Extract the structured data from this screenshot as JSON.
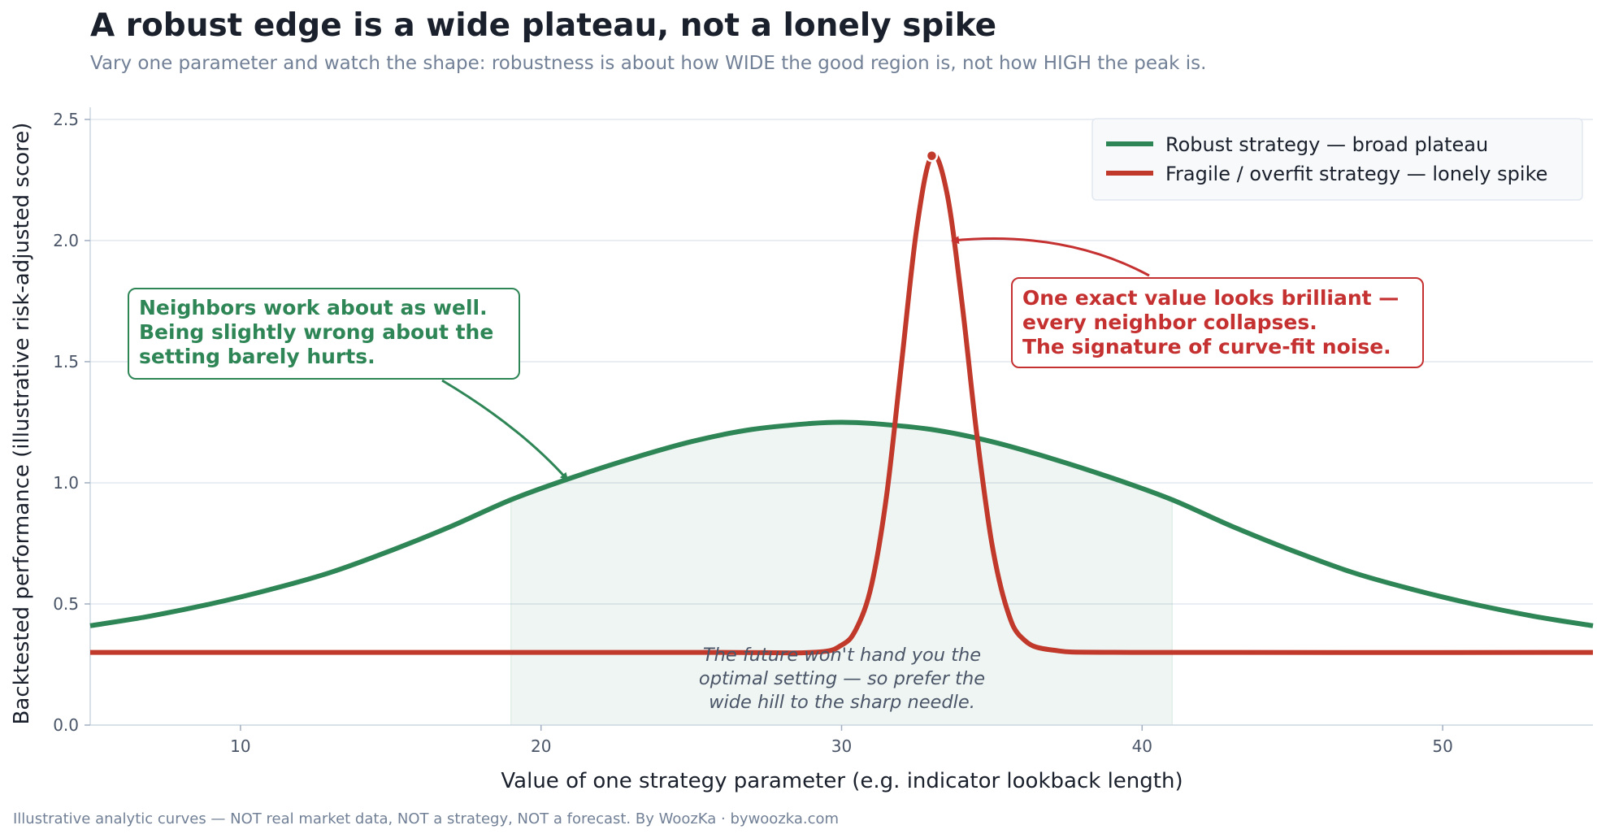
{
  "title": "A robust edge is a wide plateau, not a lonely spike",
  "subtitle": "Vary one parameter and watch the shape: robustness is about how WIDE the good region is, not how HIGH the peak is.",
  "footer": "Illustrative analytic curves — NOT real market data, NOT a strategy, NOT a forecast. By WoozKa · bywoozka.com",
  "chart_data": {
    "type": "line",
    "xlabel": "Value of one strategy parameter  (e.g. indicator lookback length)",
    "ylabel": "Backtested performance  (illustrative risk-adjusted score)",
    "xlim": [
      5,
      55
    ],
    "ylim": [
      0,
      2.55
    ],
    "x_ticks": [
      "10",
      "20",
      "30",
      "40",
      "50"
    ],
    "y_ticks": [
      "0.0",
      "0.5",
      "1.0",
      "1.5",
      "2.0",
      "2.5"
    ],
    "grid": "horizontal",
    "legend_position": "top-right",
    "shaded_region": {
      "x": [
        19,
        41
      ]
    },
    "series": [
      {
        "name": "Robust strategy — broad plateau",
        "color": "#2e8555",
        "x": [
          5,
          7,
          9,
          11,
          13,
          15,
          17,
          19,
          21,
          23,
          25,
          27,
          29,
          30,
          31,
          33,
          35,
          37,
          39,
          41,
          43,
          45,
          47,
          49,
          51,
          53,
          55
        ],
        "y": [
          0.41,
          0.45,
          0.5,
          0.56,
          0.63,
          0.72,
          0.82,
          0.93,
          1.02,
          1.1,
          1.17,
          1.22,
          1.245,
          1.25,
          1.245,
          1.22,
          1.17,
          1.1,
          1.02,
          0.93,
          0.82,
          0.72,
          0.63,
          0.56,
          0.5,
          0.45,
          0.41
        ]
      },
      {
        "name": "Fragile / overfit strategy — lonely spike",
        "color": "#c0392b",
        "x": [
          5,
          25,
          29,
          30,
          30.5,
          31,
          31.5,
          32,
          32.5,
          33,
          33.5,
          34,
          34.5,
          35,
          35.5,
          36,
          37,
          40,
          55
        ],
        "y": [
          0.3,
          0.3,
          0.3,
          0.33,
          0.4,
          0.58,
          0.95,
          1.5,
          2.05,
          2.35,
          2.2,
          1.75,
          1.2,
          0.75,
          0.48,
          0.36,
          0.31,
          0.3,
          0.3
        ]
      }
    ],
    "peak_marker": {
      "x": 33,
      "y": 2.35
    },
    "annotations": {
      "green_box": [
        "Neighbors work about as well.",
        "Being slightly wrong about the",
        "setting barely hurts."
      ],
      "red_box": [
        "One exact value looks brilliant —",
        "every neighbor collapses.",
        "The signature of curve-fit noise."
      ],
      "center_note": [
        "The future won't hand you the",
        "optimal setting — so prefer the",
        "wide hill to the sharp needle."
      ]
    }
  }
}
